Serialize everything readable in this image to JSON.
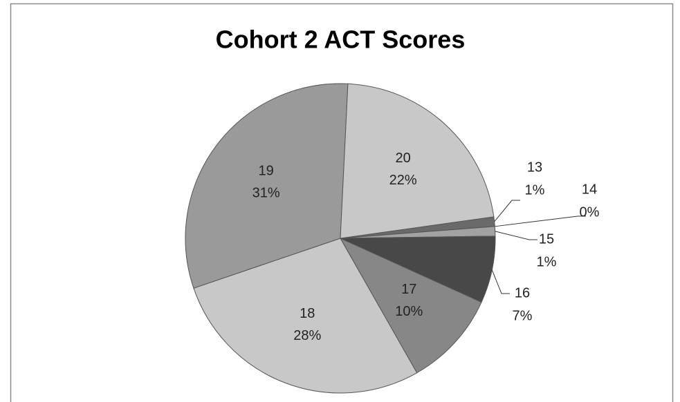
{
  "chart_data": {
    "type": "pie",
    "title": "Cohort 2 ACT Scores",
    "categories": [
      "13",
      "14",
      "15",
      "16",
      "17",
      "18",
      "19",
      "20"
    ],
    "values": [
      1,
      0,
      1,
      7,
      10,
      28,
      31,
      22
    ],
    "value_labels": [
      "1%",
      "0%",
      "1%",
      "7%",
      "10%",
      "28%",
      "31%",
      "22%"
    ],
    "colors": [
      "#6a6a6a",
      "#8e8e8e",
      "#a2a2a2",
      "#484848",
      "#878787",
      "#c8c8c8",
      "#9a9a9a",
      "#c8c8c8"
    ]
  }
}
